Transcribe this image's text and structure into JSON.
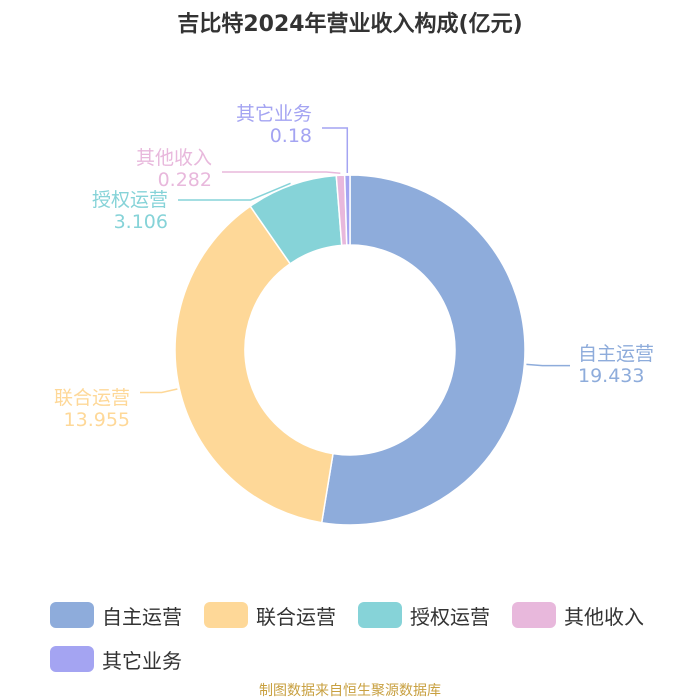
{
  "chart_data": {
    "type": "pie",
    "title": "吉比特2024年营业收入构成(亿元)",
    "categories": [
      "自主运营",
      "联合运营",
      "授权运营",
      "其他收入",
      "其它业务"
    ],
    "values": [
      19.433,
      13.955,
      3.106,
      0.282,
      0.18
    ],
    "value_labels": [
      "19.433",
      "13.955",
      "3.106",
      "0.282",
      "0.18"
    ],
    "colors": [
      "#8eacdb",
      "#fed898",
      "#86d3d8",
      "#e8b8dc",
      "#a4a4f2"
    ],
    "style": "donut",
    "legend": "bottom"
  },
  "source": "制图数据来自恒生聚源数据库"
}
